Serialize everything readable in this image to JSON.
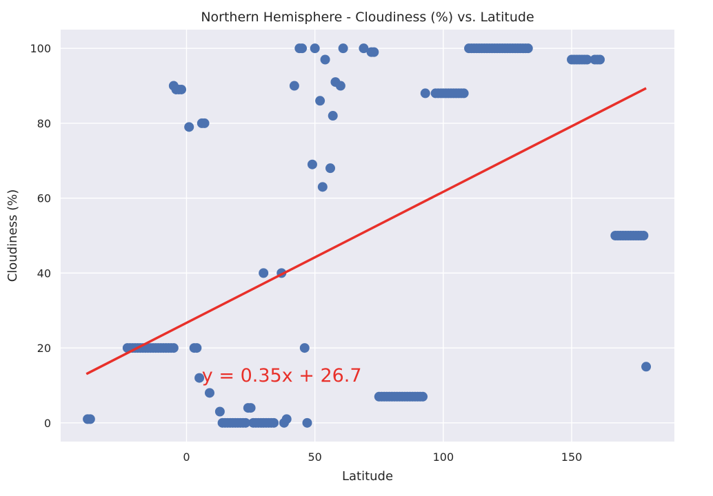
{
  "colors": {
    "background": "#ffffff",
    "plot_background": "#eaeaf2",
    "grid": "#ffffff",
    "points": "#4c72b0",
    "regression_line": "#e8302a",
    "text": "#262626"
  },
  "chart_data": {
    "type": "scatter",
    "title": "Northern Hemisphere - Cloudiness (%) vs. Latitude",
    "xlabel": "Latitude",
    "ylabel": "Cloudiness (%)",
    "xlim": [
      -49,
      190
    ],
    "ylim": [
      -5,
      105
    ],
    "xticks": [
      0,
      50,
      100,
      150
    ],
    "yticks": [
      0,
      20,
      40,
      60,
      80,
      100
    ],
    "grid": true,
    "regression": {
      "slope": 0.35,
      "intercept": 26.7,
      "x_range": [
        -39,
        179
      ],
      "equation_label": "y = 0.35x + 26.7",
      "label_position": [
        6,
        11
      ]
    },
    "points": [
      [
        -38.5,
        1
      ],
      [
        -37.5,
        1
      ],
      [
        -23,
        20
      ],
      [
        -22,
        20
      ],
      [
        -21,
        20
      ],
      [
        -20,
        20
      ],
      [
        -19,
        20
      ],
      [
        -18,
        20
      ],
      [
        -17,
        20
      ],
      [
        -16,
        20
      ],
      [
        -15,
        20
      ],
      [
        -14,
        20
      ],
      [
        -13,
        20
      ],
      [
        -12,
        20
      ],
      [
        -11,
        20
      ],
      [
        -10,
        20
      ],
      [
        -9,
        20
      ],
      [
        -8,
        20
      ],
      [
        -7,
        20
      ],
      [
        -6,
        20
      ],
      [
        -5,
        20
      ],
      [
        -5,
        90
      ],
      [
        -4,
        89
      ],
      [
        -3,
        89
      ],
      [
        -2,
        89
      ],
      [
        1,
        79
      ],
      [
        3,
        20
      ],
      [
        4,
        20
      ],
      [
        6,
        80
      ],
      [
        7,
        80
      ],
      [
        5,
        12
      ],
      [
        9,
        8
      ],
      [
        13,
        3
      ],
      [
        14,
        0
      ],
      [
        15,
        0
      ],
      [
        16,
        0
      ],
      [
        17,
        0
      ],
      [
        18,
        0
      ],
      [
        19,
        0
      ],
      [
        20,
        0
      ],
      [
        21,
        0
      ],
      [
        22,
        0
      ],
      [
        23,
        0
      ],
      [
        24,
        4
      ],
      [
        25,
        4
      ],
      [
        26,
        0
      ],
      [
        27,
        0
      ],
      [
        28,
        0
      ],
      [
        29,
        0
      ],
      [
        30,
        0
      ],
      [
        31,
        0
      ],
      [
        32,
        0
      ],
      [
        33,
        0
      ],
      [
        34,
        0
      ],
      [
        30,
        40
      ],
      [
        37,
        40
      ],
      [
        38,
        0
      ],
      [
        39,
        1
      ],
      [
        42,
        90
      ],
      [
        44,
        100
      ],
      [
        45,
        100
      ],
      [
        46,
        20
      ],
      [
        47,
        0
      ],
      [
        49,
        69
      ],
      [
        50,
        100
      ],
      [
        52,
        86
      ],
      [
        53,
        63
      ],
      [
        54,
        97
      ],
      [
        56,
        68
      ],
      [
        57,
        82
      ],
      [
        58,
        91
      ],
      [
        60,
        90
      ],
      [
        61,
        100
      ],
      [
        69,
        100
      ],
      [
        72,
        99
      ],
      [
        73,
        99
      ],
      [
        75,
        7
      ],
      [
        76,
        7
      ],
      [
        77,
        7
      ],
      [
        78,
        7
      ],
      [
        79,
        7
      ],
      [
        80,
        7
      ],
      [
        81,
        7
      ],
      [
        82,
        7
      ],
      [
        83,
        7
      ],
      [
        84,
        7
      ],
      [
        85,
        7
      ],
      [
        86,
        7
      ],
      [
        87,
        7
      ],
      [
        88,
        7
      ],
      [
        89,
        7
      ],
      [
        90,
        7
      ],
      [
        91,
        7
      ],
      [
        92,
        7
      ],
      [
        93,
        88
      ],
      [
        97,
        88
      ],
      [
        98,
        88
      ],
      [
        99,
        88
      ],
      [
        100,
        88
      ],
      [
        101,
        88
      ],
      [
        102,
        88
      ],
      [
        103,
        88
      ],
      [
        104,
        88
      ],
      [
        105,
        88
      ],
      [
        106,
        88
      ],
      [
        107,
        88
      ],
      [
        108,
        88
      ],
      [
        110,
        100
      ],
      [
        111,
        100
      ],
      [
        112,
        100
      ],
      [
        113,
        100
      ],
      [
        114,
        100
      ],
      [
        115,
        100
      ],
      [
        116,
        100
      ],
      [
        117,
        100
      ],
      [
        118,
        100
      ],
      [
        119,
        100
      ],
      [
        120,
        100
      ],
      [
        121,
        100
      ],
      [
        122,
        100
      ],
      [
        123,
        100
      ],
      [
        124,
        100
      ],
      [
        125,
        100
      ],
      [
        126,
        100
      ],
      [
        127,
        100
      ],
      [
        128,
        100
      ],
      [
        129,
        100
      ],
      [
        130,
        100
      ],
      [
        131,
        100
      ],
      [
        132,
        100
      ],
      [
        133,
        100
      ],
      [
        150,
        97
      ],
      [
        151,
        97
      ],
      [
        152,
        97
      ],
      [
        153,
        97
      ],
      [
        154,
        97
      ],
      [
        155,
        97
      ],
      [
        156,
        97
      ],
      [
        159,
        97
      ],
      [
        160,
        97
      ],
      [
        161,
        97
      ],
      [
        167,
        50
      ],
      [
        168,
        50
      ],
      [
        169,
        50
      ],
      [
        170,
        50
      ],
      [
        171,
        50
      ],
      [
        172,
        50
      ],
      [
        173,
        50
      ],
      [
        174,
        50
      ],
      [
        175,
        50
      ],
      [
        176,
        50
      ],
      [
        177,
        50
      ],
      [
        178,
        50
      ],
      [
        179,
        15
      ]
    ]
  }
}
